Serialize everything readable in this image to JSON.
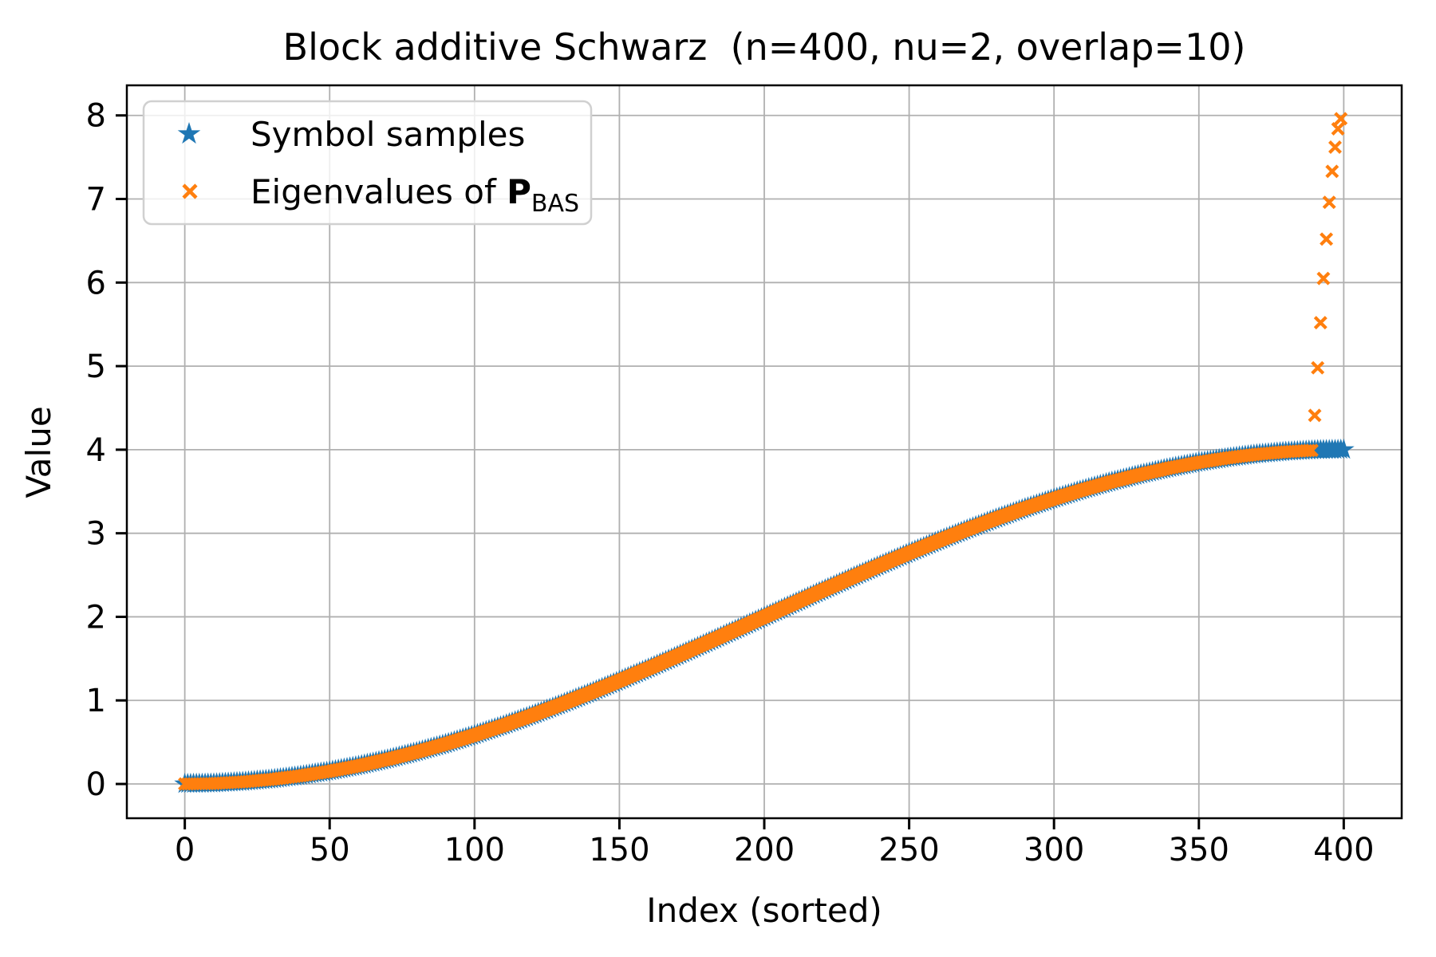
{
  "figure": {
    "title": "Block additive Schwarz  (n=400, nu=2, overlap=10)",
    "xlabel": "Index (sorted)",
    "ylabel": "Value"
  },
  "legend": {
    "entries": [
      {
        "label": "Symbol samples",
        "marker": "star",
        "color": "#1f77b4"
      },
      {
        "label_prefix": "Eigenvalues of ",
        "label_math": "P",
        "label_sub": "BAS",
        "marker": "x",
        "color": "#ff7f0e"
      }
    ]
  },
  "colors": {
    "blue": "#1f77b4",
    "orange": "#ff7f0e",
    "grid": "#b0b0b0",
    "spine": "#000000",
    "legend_border": "#d0d0d0",
    "legend_fill": "rgba(255,255,255,0.8)"
  },
  "chart_data": {
    "type": "scatter",
    "title": "Block additive Schwarz  (n=400, nu=2, overlap=10)",
    "xlabel": "Index (sorted)",
    "ylabel": "Value",
    "xlim": [
      -20,
      420
    ],
    "ylim": [
      -0.41,
      8.36
    ],
    "xticks": [
      0,
      50,
      100,
      150,
      200,
      250,
      300,
      350,
      400
    ],
    "yticks": [
      0,
      1,
      2,
      3,
      4,
      5,
      6,
      7,
      8
    ],
    "grid": true,
    "legend_position": "upper left",
    "curve_note": "Both series follow the same sorted sigmoid curve y=2-2cos(pi*i/400); sampled every 10 indices below, markers drawn at every integer index",
    "curve_sample_x": [
      0,
      10,
      20,
      30,
      40,
      50,
      60,
      70,
      80,
      90,
      100,
      110,
      120,
      130,
      140,
      150,
      160,
      170,
      180,
      190,
      200,
      210,
      220,
      230,
      240,
      250,
      260,
      270,
      280,
      290,
      300,
      310,
      320,
      330,
      340,
      350,
      360,
      370,
      380,
      390,
      400
    ],
    "curve_sample_y": [
      0.0,
      0.006,
      0.025,
      0.055,
      0.098,
      0.152,
      0.218,
      0.295,
      0.382,
      0.479,
      0.586,
      0.701,
      0.824,
      0.955,
      1.092,
      1.235,
      1.382,
      1.533,
      1.687,
      1.843,
      2.0,
      2.157,
      2.313,
      2.467,
      2.618,
      2.765,
      2.908,
      3.045,
      3.176,
      3.299,
      3.414,
      3.521,
      3.618,
      3.705,
      3.782,
      3.848,
      3.902,
      3.945,
      3.975,
      3.994,
      4.0
    ],
    "series": [
      {
        "name": "Symbol samples",
        "marker": "star",
        "color": "#1f77b4",
        "marker_px": 14,
        "x_range": [
          0,
          400
        ],
        "x_step": 1,
        "follows_curve": true
      },
      {
        "name": "Eigenvalues of P_BAS",
        "marker": "x",
        "color": "#ff7f0e",
        "marker_px": 7,
        "x_range": [
          0,
          389
        ],
        "x_step": 1,
        "follows_curve": true,
        "outlier_x": [
          390,
          391,
          392,
          393,
          394,
          395,
          396,
          397,
          398,
          399
        ],
        "outlier_y": [
          4.41,
          4.98,
          5.52,
          6.05,
          6.52,
          6.96,
          7.33,
          7.62,
          7.84,
          7.96
        ]
      }
    ]
  }
}
